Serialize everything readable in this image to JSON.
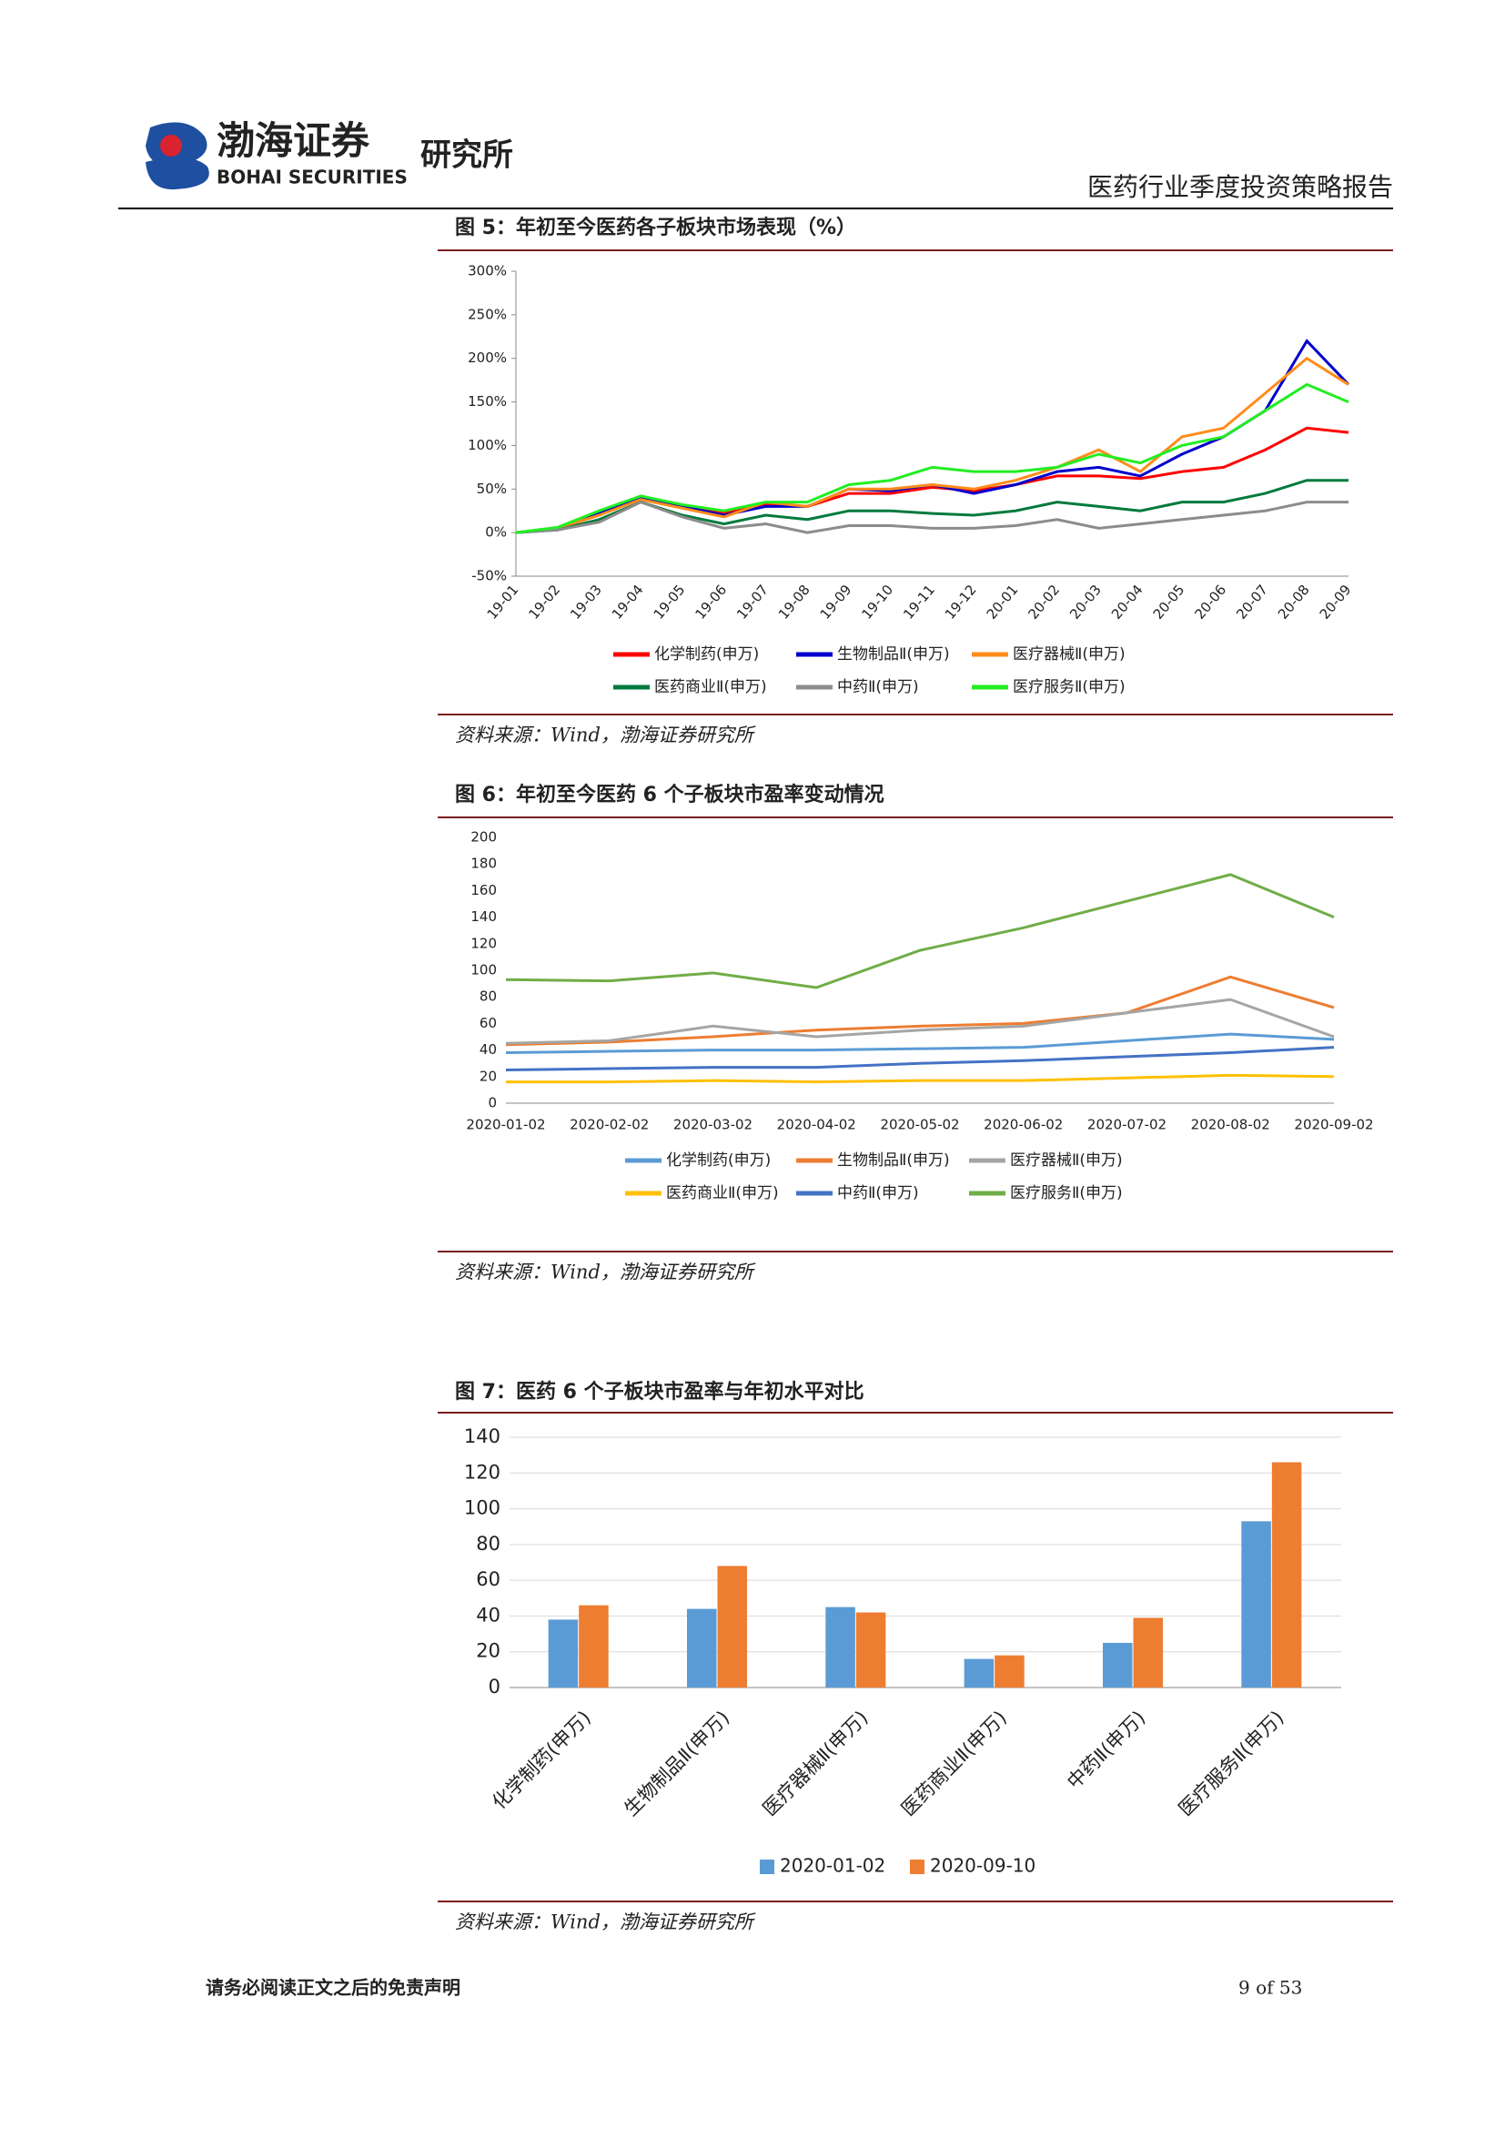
{
  "header": {
    "logo_cn": "渤海证券",
    "logo_en": "BOHAI SECURITIES",
    "institute": "研究所",
    "report_title": "医药行业季度投资策略报告"
  },
  "figures": [
    {
      "title": "图 5：年初至今医药各子板块市场表现（%）",
      "source": "资料来源：Wind，渤海证券研究所"
    },
    {
      "title": "图 6：年初至今医药 6 个子板块市盈率变动情况",
      "source": "资料来源：Wind，渤海证券研究所"
    },
    {
      "title": "图 7：医药 6 个子板块市盈率与年初水平对比",
      "source": "资料来源：Wind，渤海证券研究所"
    }
  ],
  "chart_data": [
    {
      "type": "line",
      "categories": [
        "19-01",
        "19-02",
        "19-03",
        "19-04",
        "19-05",
        "19-06",
        "19-07",
        "19-08",
        "19-09",
        "19-10",
        "19-11",
        "19-12",
        "20-01",
        "20-02",
        "20-03",
        "20-04",
        "20-05",
        "20-06",
        "20-07",
        "20-08",
        "20-09"
      ],
      "series": [
        {
          "name": "化学制药(申万)",
          "color": "#ff0000",
          "values": [
            0,
            5,
            20,
            42,
            30,
            22,
            33,
            30,
            45,
            45,
            52,
            48,
            55,
            65,
            65,
            62,
            70,
            75,
            95,
            120,
            115
          ]
        },
        {
          "name": "生物制品Ⅱ(申万)",
          "color": "#0000cc",
          "values": [
            0,
            5,
            22,
            40,
            30,
            20,
            30,
            30,
            50,
            48,
            55,
            45,
            55,
            70,
            75,
            65,
            90,
            110,
            140,
            220,
            170
          ]
        },
        {
          "name": "医疗器械Ⅱ(申万)",
          "color": "#ff8c1a",
          "values": [
            0,
            5,
            20,
            38,
            28,
            18,
            35,
            30,
            50,
            50,
            55,
            50,
            60,
            75,
            95,
            70,
            110,
            120,
            160,
            200,
            170
          ]
        },
        {
          "name": "医药商业Ⅱ(申万)",
          "color": "#007a3d",
          "values": [
            0,
            3,
            15,
            35,
            20,
            10,
            20,
            15,
            25,
            25,
            22,
            20,
            25,
            35,
            30,
            25,
            35,
            35,
            45,
            60,
            60
          ]
        },
        {
          "name": "中药Ⅱ(申万)",
          "color": "#8c8c8c",
          "values": [
            0,
            3,
            12,
            35,
            18,
            5,
            10,
            0,
            8,
            8,
            5,
            5,
            8,
            15,
            5,
            10,
            15,
            20,
            25,
            35,
            35
          ]
        },
        {
          "name": "医疗服务Ⅱ(申万)",
          "color": "#22ee22",
          "values": [
            0,
            6,
            25,
            42,
            32,
            25,
            35,
            35,
            55,
            60,
            75,
            70,
            70,
            75,
            90,
            80,
            100,
            110,
            140,
            170,
            150
          ]
        }
      ],
      "ylim": [
        -50,
        300
      ],
      "yticks": [
        {
          "value": -50,
          "label": "-50%"
        },
        {
          "value": 0,
          "label": "0%"
        },
        {
          "value": 50,
          "label": "50%"
        },
        {
          "value": 100,
          "label": "100%"
        },
        {
          "value": 150,
          "label": "150%"
        },
        {
          "value": 200,
          "label": "200%"
        },
        {
          "value": 250,
          "label": "250%"
        },
        {
          "value": 300,
          "label": "300%"
        }
      ],
      "grid": false
    },
    {
      "type": "line",
      "categories": [
        "2020-01-02",
        "2020-02-02",
        "2020-03-02",
        "2020-04-02",
        "2020-05-02",
        "2020-06-02",
        "2020-07-02",
        "2020-08-02",
        "2020-09-02"
      ],
      "series": [
        {
          "name": "化学制药(申万)",
          "color": "#5b9bd5",
          "values": [
            38,
            39,
            40,
            40,
            41,
            42,
            47,
            52,
            48
          ]
        },
        {
          "name": "生物制品Ⅱ(申万)",
          "color": "#ed7d31",
          "values": [
            44,
            46,
            50,
            55,
            58,
            60,
            68,
            95,
            72
          ]
        },
        {
          "name": "医疗器械Ⅱ(申万)",
          "color": "#a5a5a5",
          "values": [
            45,
            47,
            58,
            50,
            55,
            58,
            68,
            78,
            50
          ]
        },
        {
          "name": "医药商业Ⅱ(申万)",
          "color": "#ffc000",
          "values": [
            16,
            16,
            17,
            16,
            17,
            17,
            19,
            21,
            20
          ]
        },
        {
          "name": "中药Ⅱ(申万)",
          "color": "#4472c4",
          "values": [
            25,
            26,
            27,
            27,
            30,
            32,
            35,
            38,
            42
          ]
        },
        {
          "name": "医疗服务Ⅱ(申万)",
          "color": "#70ad47",
          "values": [
            93,
            92,
            98,
            87,
            115,
            132,
            152,
            172,
            140
          ]
        }
      ],
      "ylim": [
        0,
        200
      ],
      "yticks": [
        0,
        20,
        40,
        60,
        80,
        100,
        120,
        140,
        160,
        180,
        200
      ],
      "grid": false
    },
    {
      "type": "bar",
      "categories": [
        "化学制药(申万)",
        "生物制品Ⅱ(申万)",
        "医疗器械Ⅱ(申万)",
        "医药商业Ⅱ(申万)",
        "中药Ⅱ(申万)",
        "医疗服务Ⅱ(申万)"
      ],
      "series": [
        {
          "name": "2020-01-02",
          "color": "#5b9bd5",
          "values": [
            38,
            44,
            45,
            16,
            25,
            93
          ]
        },
        {
          "name": "2020-09-10",
          "color": "#ed7d31",
          "values": [
            46,
            68,
            42,
            18,
            39,
            126
          ]
        }
      ],
      "ylim": [
        0,
        140
      ],
      "yticks": [
        0,
        20,
        40,
        60,
        80,
        100,
        120,
        140
      ],
      "grid": true
    }
  ],
  "footer": {
    "disclaimer": "请务必阅读正文之后的免责声明",
    "page": "9 of 53"
  }
}
